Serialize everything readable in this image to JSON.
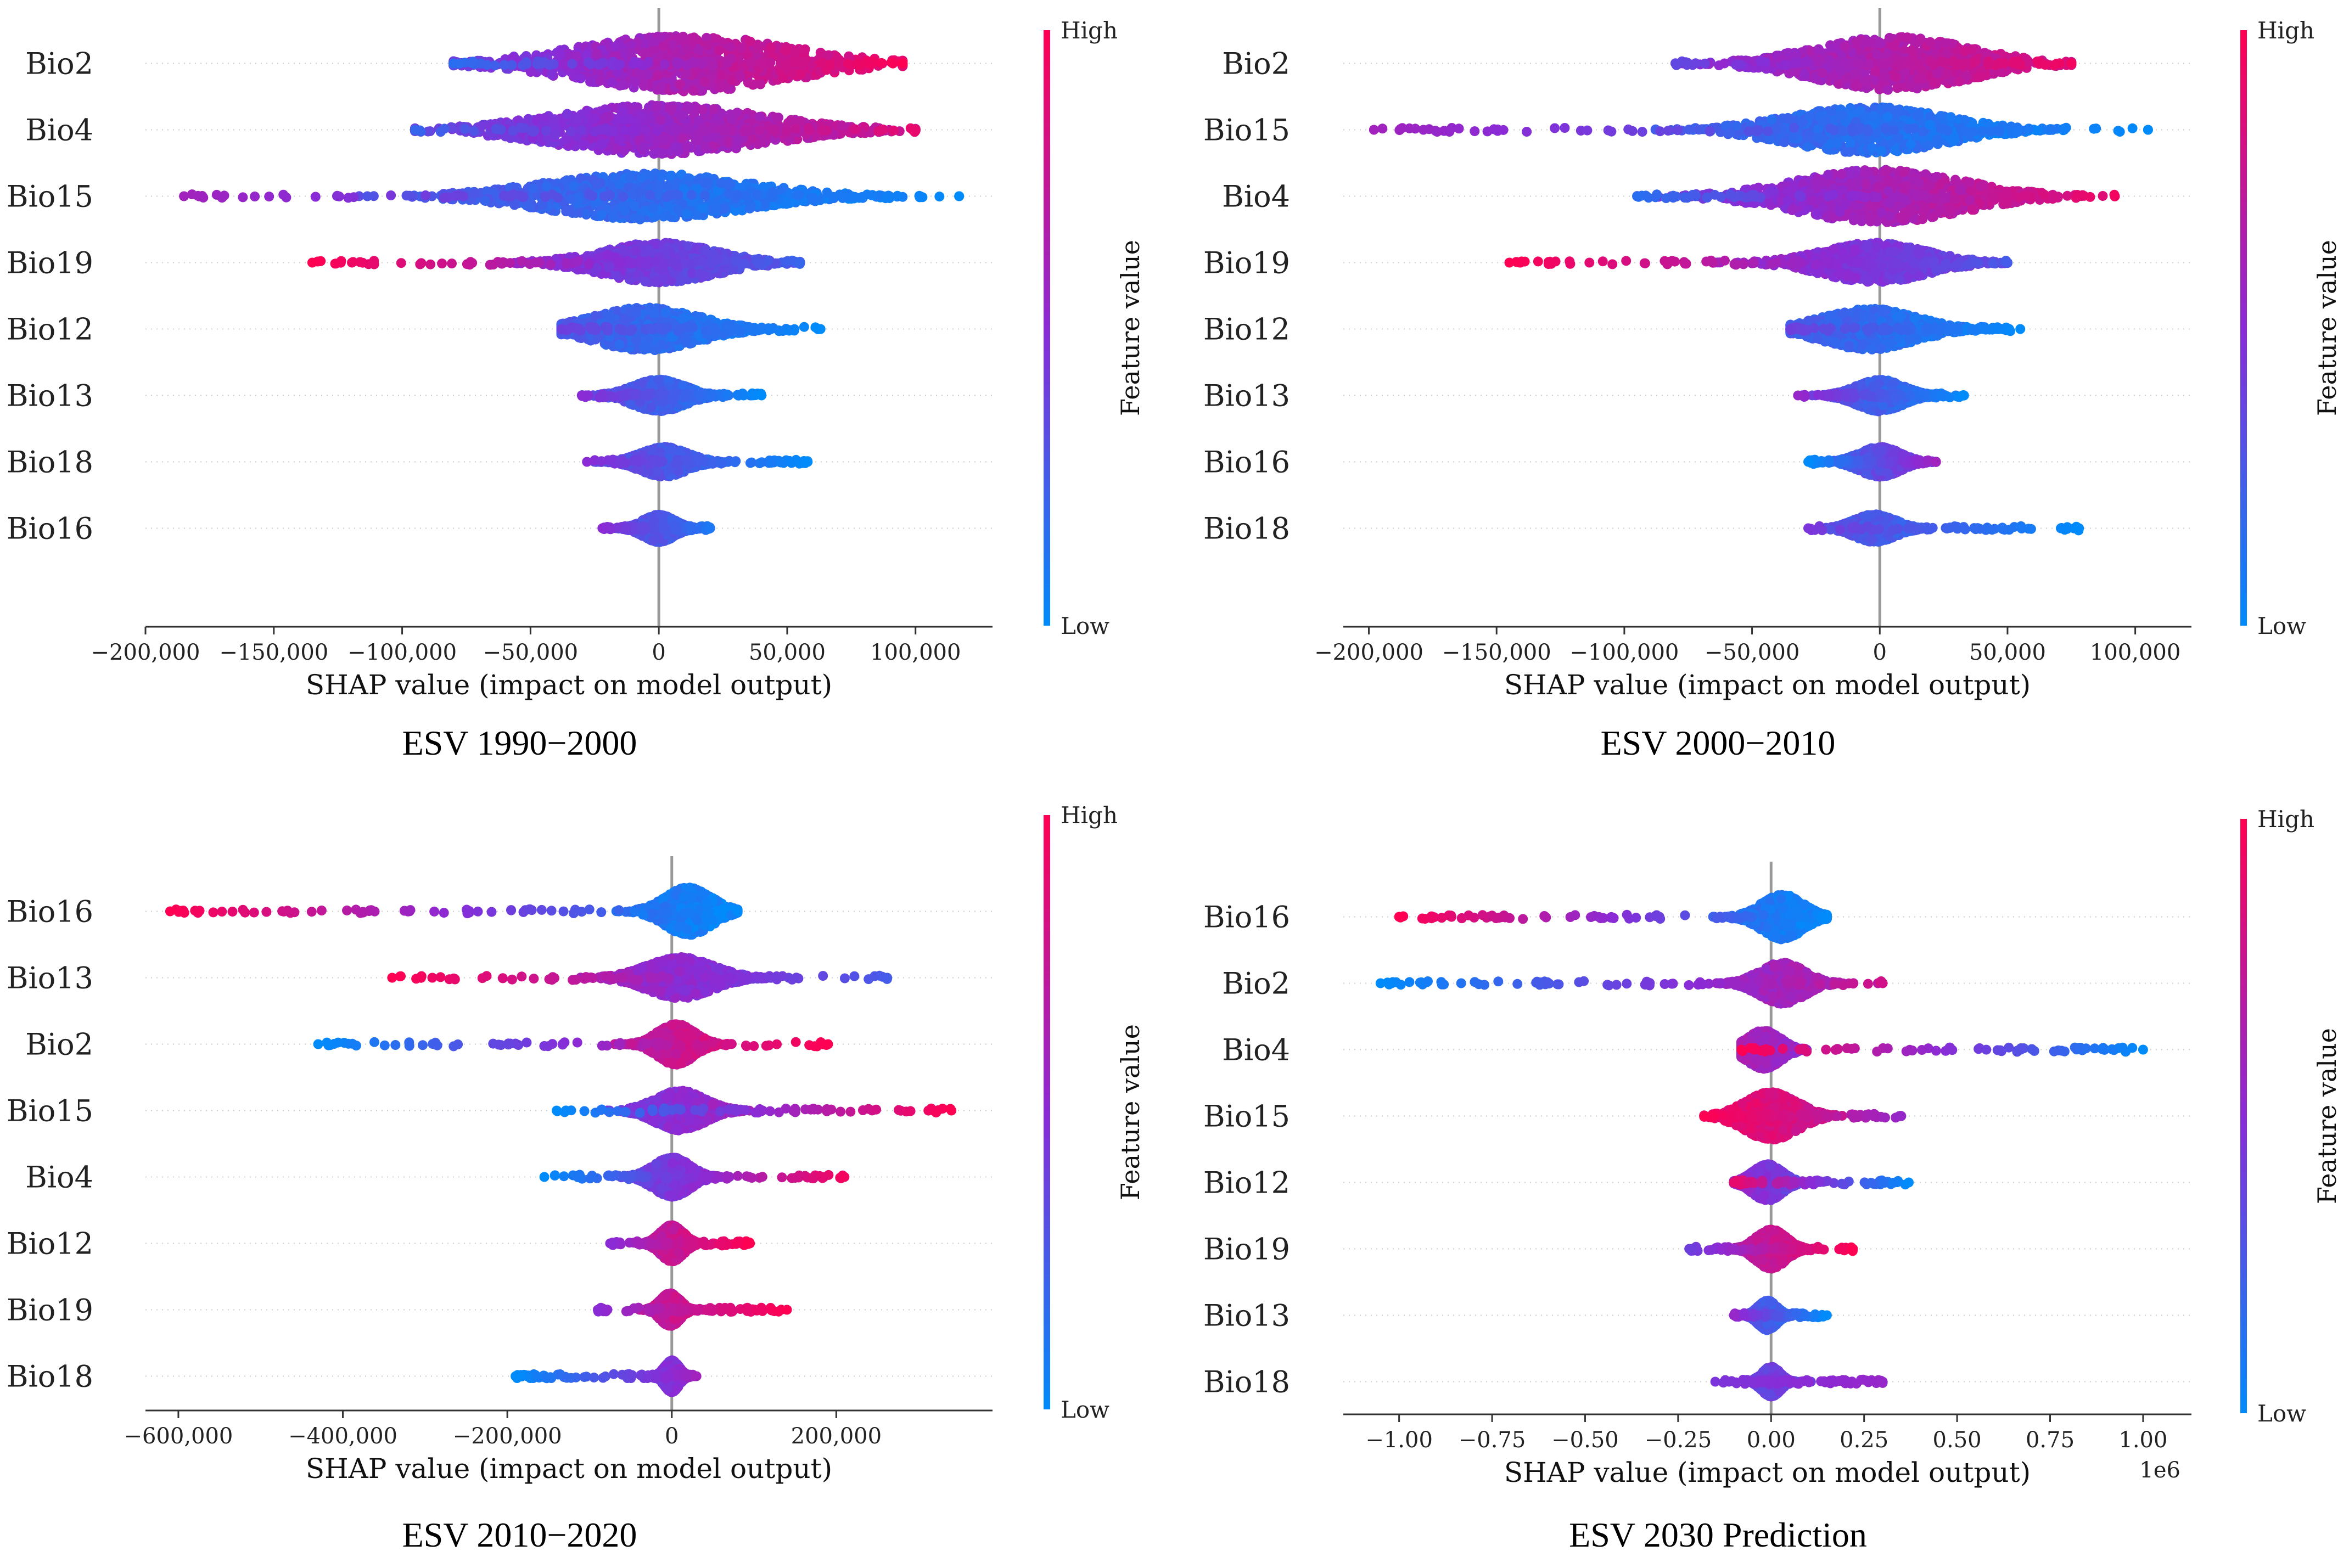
{
  "colors": {
    "high": "#ff0052",
    "low": "#008bfb",
    "axis": "#333333",
    "zero_line": "#999999",
    "row_guide": "#cccccc"
  },
  "colorbar": {
    "high_label": "High",
    "low_label": "Low",
    "title": "Feature value"
  },
  "chart_data": [
    {
      "type": "scatter",
      "subtype": "shap-beeswarm",
      "caption": "ESV 1990−2000",
      "xlabel": "SHAP value (impact on model output)",
      "xlim": [
        -200000,
        130000
      ],
      "xticks": [
        -200000,
        -150000,
        -100000,
        -50000,
        0,
        50000,
        100000
      ],
      "xtick_labels": [
        "−200,000",
        "−150,000",
        "−100,000",
        "−50,000",
        "0",
        "50,000",
        "100,000"
      ],
      "offset_label": "",
      "features": [
        {
          "name": "Bio2",
          "min": -80000,
          "max": 95000,
          "lo": 0.15,
          "mid": 0.75,
          "hi": 1.0,
          "spread": 40000,
          "peak": 10000,
          "width": 0.85,
          "trend": 1
        },
        {
          "name": "Bio4",
          "min": -95000,
          "max": 100000,
          "lo": 0.2,
          "mid": 0.6,
          "hi": 0.9,
          "spread": 40000,
          "peak": 0,
          "width": 0.75,
          "trend": 1
        },
        {
          "name": "Bio15",
          "min": -185000,
          "max": 117000,
          "lo": 0.0,
          "mid": 0.05,
          "hi": 0.6,
          "spread": 38000,
          "peak": -5000,
          "width": 0.7,
          "trend": -1
        },
        {
          "name": "Bio19",
          "min": -135000,
          "max": 55000,
          "lo": 0.2,
          "mid": 0.35,
          "hi": 1.0,
          "spread": 22000,
          "peak": 0,
          "width": 0.6,
          "trend": -1
        },
        {
          "name": "Bio12",
          "min": -38000,
          "max": 63000,
          "lo": 0.0,
          "mid": 0.05,
          "hi": 0.4,
          "spread": 20000,
          "peak": -5000,
          "width": 0.65,
          "trend": -1
        },
        {
          "name": "Bio13",
          "min": -30000,
          "max": 40000,
          "lo": 0.0,
          "mid": 0.15,
          "hi": 0.5,
          "spread": 10000,
          "peak": 0,
          "width": 0.48,
          "trend": -1
        },
        {
          "name": "Bio18",
          "min": -28000,
          "max": 58000,
          "lo": 0.0,
          "mid": 0.2,
          "hi": 0.5,
          "spread": 9000,
          "peak": 2000,
          "width": 0.45,
          "trend": -1
        },
        {
          "name": "Bio16",
          "min": -22000,
          "max": 20000,
          "lo": 0.1,
          "mid": 0.25,
          "hi": 0.5,
          "spread": 6000,
          "peak": 0,
          "width": 0.42,
          "trend": -1
        }
      ]
    },
    {
      "type": "scatter",
      "subtype": "shap-beeswarm",
      "caption": "ESV 2000−2010",
      "xlabel": "SHAP value (impact on model output)",
      "xlim": [
        -210000,
        122000
      ],
      "xticks": [
        -200000,
        -150000,
        -100000,
        -50000,
        0,
        50000,
        100000
      ],
      "xtick_labels": [
        "−200,000",
        "−150,000",
        "−100,000",
        "−50,000",
        "0",
        "50,000",
        "100,000"
      ],
      "offset_label": "",
      "features": [
        {
          "name": "Bio2",
          "min": -80000,
          "max": 75000,
          "lo": 0.35,
          "mid": 0.65,
          "hi": 0.95,
          "spread": 30000,
          "peak": 5000,
          "width": 0.8,
          "trend": 1
        },
        {
          "name": "Bio15",
          "min": -198000,
          "max": 105000,
          "lo": 0.0,
          "mid": 0.05,
          "hi": 0.6,
          "spread": 30000,
          "peak": -5000,
          "width": 0.7,
          "trend": -1
        },
        {
          "name": "Bio4",
          "min": -95000,
          "max": 92000,
          "lo": 0.15,
          "mid": 0.7,
          "hi": 0.95,
          "spread": 32000,
          "peak": 0,
          "width": 0.8,
          "trend": 1
        },
        {
          "name": "Bio19",
          "min": -145000,
          "max": 50000,
          "lo": 0.25,
          "mid": 0.45,
          "hi": 1.0,
          "spread": 20000,
          "peak": -2000,
          "width": 0.6,
          "trend": -1
        },
        {
          "name": "Bio12",
          "min": -35000,
          "max": 55000,
          "lo": 0.0,
          "mid": 0.05,
          "hi": 0.4,
          "spread": 18000,
          "peak": -4000,
          "width": 0.62,
          "trend": -1
        },
        {
          "name": "Bio13",
          "min": -32000,
          "max": 33000,
          "lo": 0.0,
          "mid": 0.15,
          "hi": 0.55,
          "spread": 9000,
          "peak": 0,
          "width": 0.48,
          "trend": -1
        },
        {
          "name": "Bio16",
          "min": -28000,
          "max": 22000,
          "lo": 0.0,
          "mid": 0.35,
          "hi": 0.6,
          "spread": 8000,
          "peak": 0,
          "width": 0.45,
          "trend": 1
        },
        {
          "name": "Bio18",
          "min": -28000,
          "max": 78000,
          "lo": 0.0,
          "mid": 0.15,
          "hi": 0.45,
          "spread": 8000,
          "peak": -2000,
          "width": 0.42,
          "trend": -1
        }
      ]
    },
    {
      "type": "scatter",
      "subtype": "shap-beeswarm",
      "caption": "ESV 2010−2020",
      "xlabel": "SHAP value (impact on model output)",
      "xlim": [
        -640000,
        390000
      ],
      "xticks": [
        -600000,
        -400000,
        -200000,
        0,
        200000
      ],
      "xtick_labels": [
        "−600,000",
        "−400,000",
        "−200,000",
        "0",
        "200,000"
      ],
      "offset_label": "",
      "features": [
        {
          "name": "Bio16",
          "min": -610000,
          "max": 80000,
          "lo": 0.0,
          "mid": 0.05,
          "hi": 1.0,
          "spread": 28000,
          "peak": 20000,
          "width": 0.72,
          "trend": -1
        },
        {
          "name": "Bio13",
          "min": -340000,
          "max": 262000,
          "lo": 0.25,
          "mid": 0.45,
          "hi": 1.0,
          "spread": 40000,
          "peak": 10000,
          "width": 0.62,
          "trend": -1
        },
        {
          "name": "Bio2",
          "min": -430000,
          "max": 190000,
          "lo": 0.0,
          "mid": 0.85,
          "hi": 1.0,
          "spread": 22000,
          "peak": 5000,
          "width": 0.62,
          "trend": 1
        },
        {
          "name": "Bio15",
          "min": -140000,
          "max": 340000,
          "lo": 0.0,
          "mid": 0.8,
          "hi": 1.0,
          "spread": 30000,
          "peak": 10000,
          "width": 0.6,
          "trend": 1
        },
        {
          "name": "Bio4",
          "min": -155000,
          "max": 210000,
          "lo": 0.0,
          "mid": 0.5,
          "hi": 0.95,
          "spread": 22000,
          "peak": 0,
          "width": 0.6,
          "trend": 1
        },
        {
          "name": "Bio12",
          "min": -75000,
          "max": 95000,
          "lo": 0.5,
          "mid": 0.8,
          "hi": 1.0,
          "spread": 14000,
          "peak": 0,
          "width": 0.55,
          "trend": 1
        },
        {
          "name": "Bio19",
          "min": -90000,
          "max": 140000,
          "lo": 0.5,
          "mid": 0.85,
          "hi": 1.0,
          "spread": 12000,
          "peak": -2000,
          "width": 0.5,
          "trend": 1
        },
        {
          "name": "Bio18",
          "min": -190000,
          "max": 30000,
          "lo": 0.0,
          "mid": 0.45,
          "hi": 0.6,
          "spread": 9000,
          "peak": 0,
          "width": 0.48,
          "trend": 1
        }
      ]
    },
    {
      "type": "scatter",
      "subtype": "shap-beeswarm",
      "caption": "ESV 2030 Prediction",
      "xlabel": "SHAP value (impact on model output)",
      "xlim": [
        -1.15,
        1.13
      ],
      "xticks": [
        -1.0,
        -0.75,
        -0.5,
        -0.25,
        0,
        0.25,
        0.5,
        0.75,
        1.0
      ],
      "xtick_labels": [
        "−1.00",
        "−0.75",
        "−0.50",
        "−0.25",
        "0.00",
        "0.25",
        "0.50",
        "0.75",
        "1.00"
      ],
      "offset_label": "1e6",
      "features": [
        {
          "name": "Bio16",
          "min": -1.0,
          "max": 0.15,
          "lo": 0.0,
          "mid": 0.05,
          "hi": 1.0,
          "spread": 0.055,
          "peak": 0.03,
          "width": 0.68,
          "trend": -1
        },
        {
          "name": "Bio2",
          "min": -1.05,
          "max": 0.3,
          "lo": 0.0,
          "mid": 0.55,
          "hi": 0.8,
          "spread": 0.06,
          "peak": 0.03,
          "width": 0.62,
          "trend": 1
        },
        {
          "name": "Bio4",
          "min": -0.08,
          "max": 1.0,
          "lo": 0.0,
          "mid": 0.05,
          "hi": 1.0,
          "spread": 0.045,
          "peak": -0.02,
          "width": 0.58,
          "trend": -1
        },
        {
          "name": "Bio15",
          "min": -0.18,
          "max": 0.35,
          "lo": 0.55,
          "mid": 0.85,
          "hi": 1.0,
          "spread": 0.07,
          "peak": 0.0,
          "width": 0.72,
          "trend": -1
        },
        {
          "name": "Bio12",
          "min": -0.1,
          "max": 0.37,
          "lo": 0.0,
          "mid": 0.05,
          "hi": 0.9,
          "spread": 0.04,
          "peak": -0.01,
          "width": 0.55,
          "trend": -1
        },
        {
          "name": "Bio19",
          "min": -0.22,
          "max": 0.22,
          "lo": 0.4,
          "mid": 0.85,
          "hi": 1.0,
          "spread": 0.04,
          "peak": 0.0,
          "width": 0.6,
          "trend": 1
        },
        {
          "name": "Bio13",
          "min": -0.1,
          "max": 0.15,
          "lo": 0.0,
          "mid": 0.1,
          "hi": 0.55,
          "spread": 0.025,
          "peak": -0.01,
          "width": 0.45,
          "trend": -1
        },
        {
          "name": "Bio18",
          "min": -0.15,
          "max": 0.3,
          "lo": 0.45,
          "mid": 0.25,
          "hi": 0.55,
          "spread": 0.025,
          "peak": 0.0,
          "width": 0.45,
          "trend": 1
        }
      ]
    }
  ]
}
